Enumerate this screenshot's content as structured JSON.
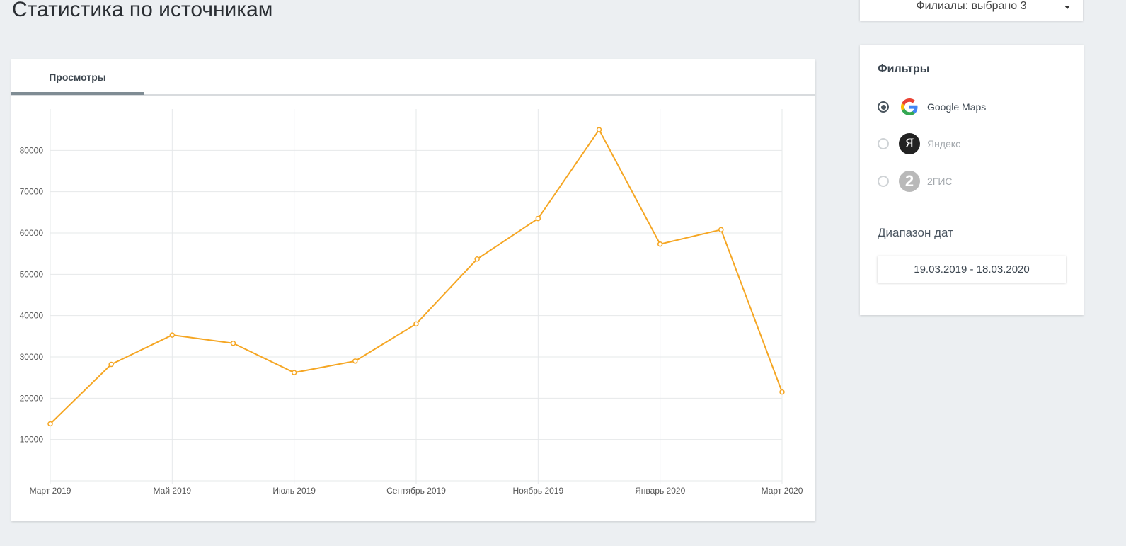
{
  "page": {
    "title": "Статистика по источникам"
  },
  "branches": {
    "label": "Филиалы: выбрано 3"
  },
  "tabs": [
    {
      "label": "Просмотры",
      "active": true
    }
  ],
  "filters": {
    "title": "Фильтры",
    "sources": [
      {
        "label": "Google Maps",
        "icon": "google-icon",
        "selected": true
      },
      {
        "label": "Яндекс",
        "icon": "yandex-icon",
        "selected": false
      },
      {
        "label": "2ГИС",
        "icon": "2gis-icon",
        "selected": false
      }
    ],
    "date_range_title": "Диапазон дат",
    "date_range_value": "19.03.2019 - 18.03.2020"
  },
  "colors": {
    "series": "#f5a623",
    "background": "#eceff2",
    "active_tab": "#7f8c94"
  },
  "chart_data": {
    "type": "line",
    "x": [
      "2019-03",
      "2019-04",
      "2019-05",
      "2019-06",
      "2019-07",
      "2019-08",
      "2019-09",
      "2019-10",
      "2019-11",
      "2019-12",
      "2020-01",
      "2020-02",
      "2020-03"
    ],
    "x_tick_labels": [
      "Март 2019",
      "Май 2019",
      "Июль 2019",
      "Сентябрь 2019",
      "Ноябрь 2019",
      "Январь 2020",
      "Март 2020"
    ],
    "series": [
      {
        "values": [
          13800,
          28200,
          35300,
          33300,
          26200,
          29000,
          38000,
          53700,
          63500,
          85000,
          57300,
          60800,
          21500
        ]
      }
    ],
    "y_ticks": [
      10000,
      20000,
      30000,
      40000,
      50000,
      60000,
      70000,
      80000
    ],
    "ylim": [
      0,
      90000
    ],
    "grid": true,
    "legend": "none"
  }
}
